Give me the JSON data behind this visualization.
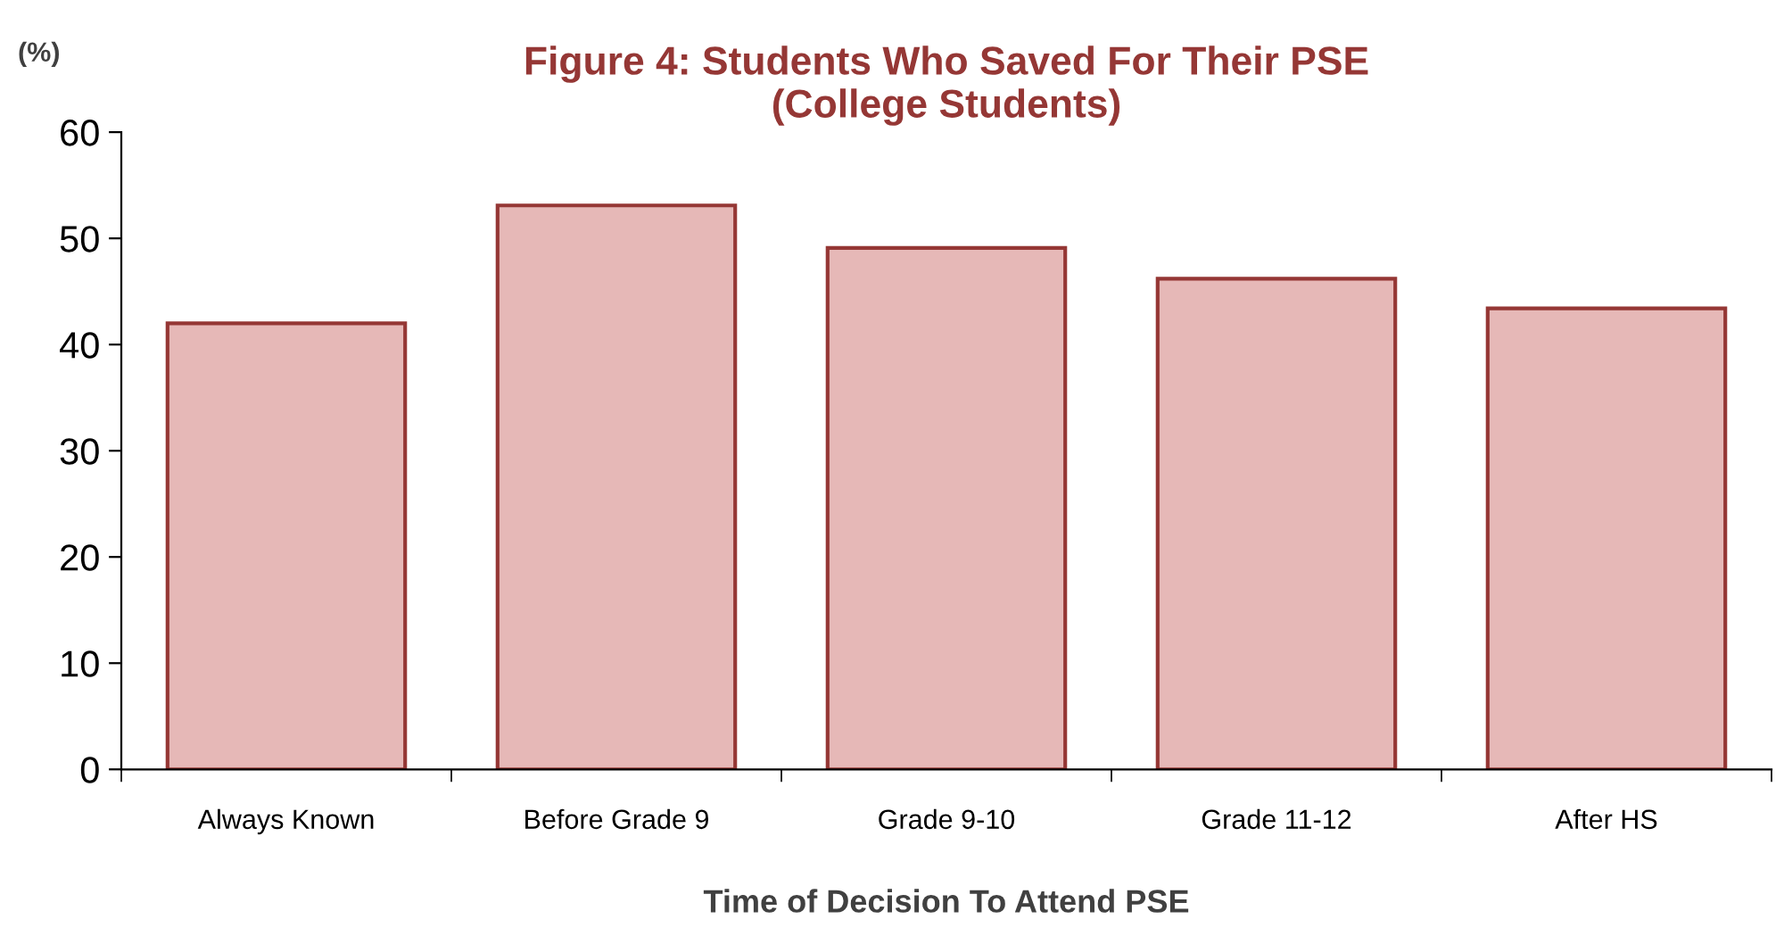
{
  "chart_data": {
    "type": "bar",
    "title": "Figure 4: Students Who Saved For Their PSE\n(College Students)",
    "ylabel": "(%)",
    "xlabel": "Time of Decision To Attend PSE",
    "categories": [
      "Always Known",
      "Before Grade 9",
      "Grade 9-10",
      "Grade 11-12",
      "After HS"
    ],
    "values": [
      42.0,
      53.1,
      49.1,
      46.2,
      43.4
    ],
    "color": "#e6b8b7",
    "ylim": [
      0,
      60
    ],
    "yticks": [
      0,
      10,
      20,
      30,
      40,
      50,
      60
    ],
    "grid": false
  }
}
